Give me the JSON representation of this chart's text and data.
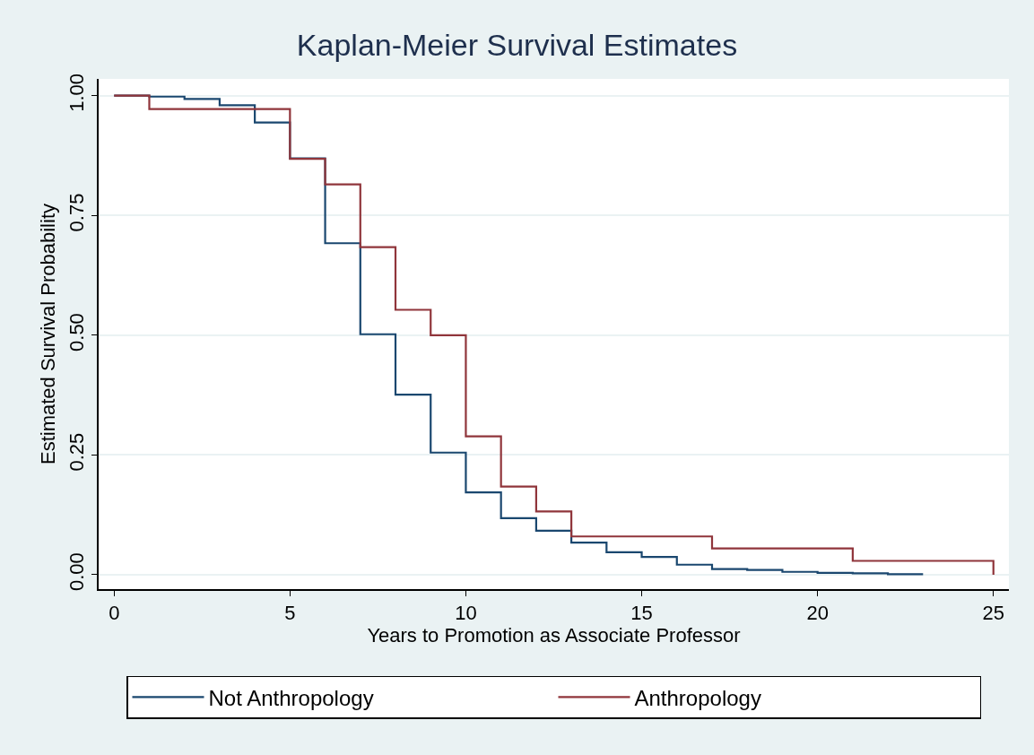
{
  "chart_data": {
    "type": "step",
    "title": "Kaplan-Meier Survival Estimates",
    "xlabel": "Years to Promotion as Associate Professor",
    "ylabel": "Estimated Survival Probability",
    "series": [
      {
        "name": "Not Anthropology",
        "color": "#1a476f",
        "x": [
          0,
          1,
          2,
          3,
          4,
          5,
          6,
          7,
          8,
          9,
          10,
          11,
          12,
          13,
          14,
          15,
          16,
          17,
          18,
          19,
          20,
          21,
          22,
          23
        ],
        "values": [
          1.0,
          0.998,
          0.993,
          0.98,
          0.944,
          0.869,
          0.692,
          0.502,
          0.376,
          0.255,
          0.172,
          0.118,
          0.092,
          0.067,
          0.047,
          0.037,
          0.021,
          0.012,
          0.01,
          0.006,
          0.004,
          0.003,
          0.001,
          0.001
        ]
      },
      {
        "name": "Anthropology",
        "color": "#90353b",
        "x": [
          0,
          1,
          5,
          6,
          7,
          8,
          9,
          10,
          11,
          12,
          13,
          17,
          21,
          25,
          25
        ],
        "values": [
          1.0,
          0.972,
          0.868,
          0.815,
          0.684,
          0.553,
          0.5,
          0.289,
          0.184,
          0.132,
          0.08,
          0.055,
          0.029,
          0.029,
          0.0
        ]
      }
    ],
    "xlim": [
      -0.44,
      25.44
    ],
    "xticks": [
      0,
      5,
      10,
      15,
      20,
      25
    ],
    "ylim": [
      -0.03,
      1.035
    ],
    "yticks": [
      {
        "value": 0,
        "label": "0.00"
      },
      {
        "value": 0.25,
        "label": "0.25"
      },
      {
        "value": 0.5,
        "label": "0.50"
      },
      {
        "value": 0.75,
        "label": "0.75"
      },
      {
        "value": 1,
        "label": "1.00"
      }
    ],
    "grid": "y",
    "legend": "bottom",
    "line_style": "solid",
    "marker": "none"
  }
}
